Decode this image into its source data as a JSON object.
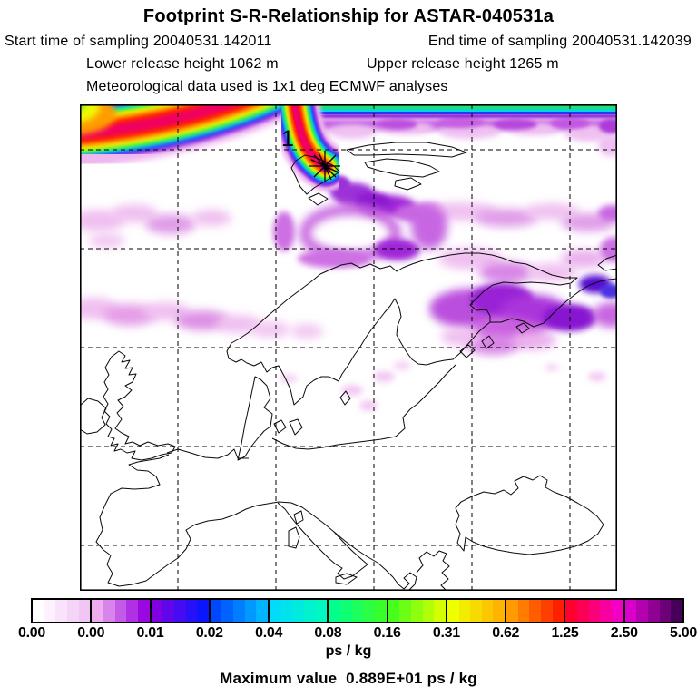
{
  "header": {
    "title": "Footprint S-R-Relationship for ASTAR-040531a",
    "start_time": "Start time of sampling 20040531.142011",
    "end_time": "End time of sampling 20040531.142039",
    "lower_release": "Lower release height 1062 m",
    "upper_release": "Upper release height 1265 m",
    "met_data": "Meteorological data used is 1x1 deg ECMWF analyses"
  },
  "map": {
    "receptor_label": "1"
  },
  "colorbar": {
    "unit": "ps / kg",
    "labels": [
      "0.00",
      "0.00",
      "0.01",
      "0.02",
      "0.04",
      "0.08",
      "0.16",
      "0.31",
      "0.62",
      "1.25",
      "2.50",
      "5.00"
    ],
    "segments": [
      {
        "from": "#FFFFFF",
        "to": "#F2C6F4"
      },
      {
        "from": "#EDADEF",
        "to": "#9B07E0"
      },
      {
        "from": "#7E00E3",
        "to": "#0B16FF"
      },
      {
        "from": "#0048FF",
        "to": "#00B4FF"
      },
      {
        "from": "#00DCFA",
        "to": "#00F9C0"
      },
      {
        "from": "#00FF8C",
        "to": "#38FF2C"
      },
      {
        "from": "#48FF1C",
        "to": "#D4FF00"
      },
      {
        "from": "#EEFF00",
        "to": "#FFB400"
      },
      {
        "from": "#FF9A00",
        "to": "#FF2000"
      },
      {
        "from": "#FF0030",
        "to": "#F400C4"
      },
      {
        "from": "#DA00CC",
        "to": "#46005A"
      }
    ]
  },
  "footer": {
    "max_value": "Maximum value  0.889E+01 ps / kg"
  },
  "chart_data": {
    "type": "heatmap",
    "title": "Footprint S-R-Relationship for ASTAR-040531a",
    "subtitle_lines": [
      "Start time of sampling 20040531.142011",
      "End time of sampling 20040531.142039",
      "Lower release height 1062 m",
      "Upper release height 1265 m",
      "Meteorological data used is 1x1 deg ECMWF analyses"
    ],
    "unit": "ps / kg",
    "colorbar_levels": [
      0.0,
      0.0,
      0.01,
      0.02,
      0.04,
      0.08,
      0.16,
      0.31,
      0.62,
      1.25,
      2.5,
      5.0
    ],
    "maximum_value_text": "0.889E+01 ps / kg",
    "maximum_value": 8.89,
    "legend_position": "bottom",
    "grid": {
      "style": "dashed",
      "vertical_lines": 5,
      "horizontal_lines": 5
    },
    "geographic_region": "Europe and Arctic: Svalbard (top) to Mediterranean/Black Sea (bottom), Ireland (left) to White Sea (right)",
    "receptor_marker": {
      "label": "1",
      "symbol": "asterisk",
      "map_position_fraction": {
        "x": 0.455,
        "y": 0.127
      }
    },
    "field_description": "Maximum footprint sensitivity (red/magenta rainbow band, 0.6 to >5 ps/kg) forms a plume along the upper-left map edge hooking down to the receptor over Svalbard with a dark-purple core; a green/cyan/purple band (~0.04-0.3 ps/kg) runs along the entire top edge; diffuse low values (<0.02 ps/kg, pink-violet) cover the Barents Sea, Kola Peninsula, White Sea and northern Scandinavia; values vanish south of ~60N."
  }
}
